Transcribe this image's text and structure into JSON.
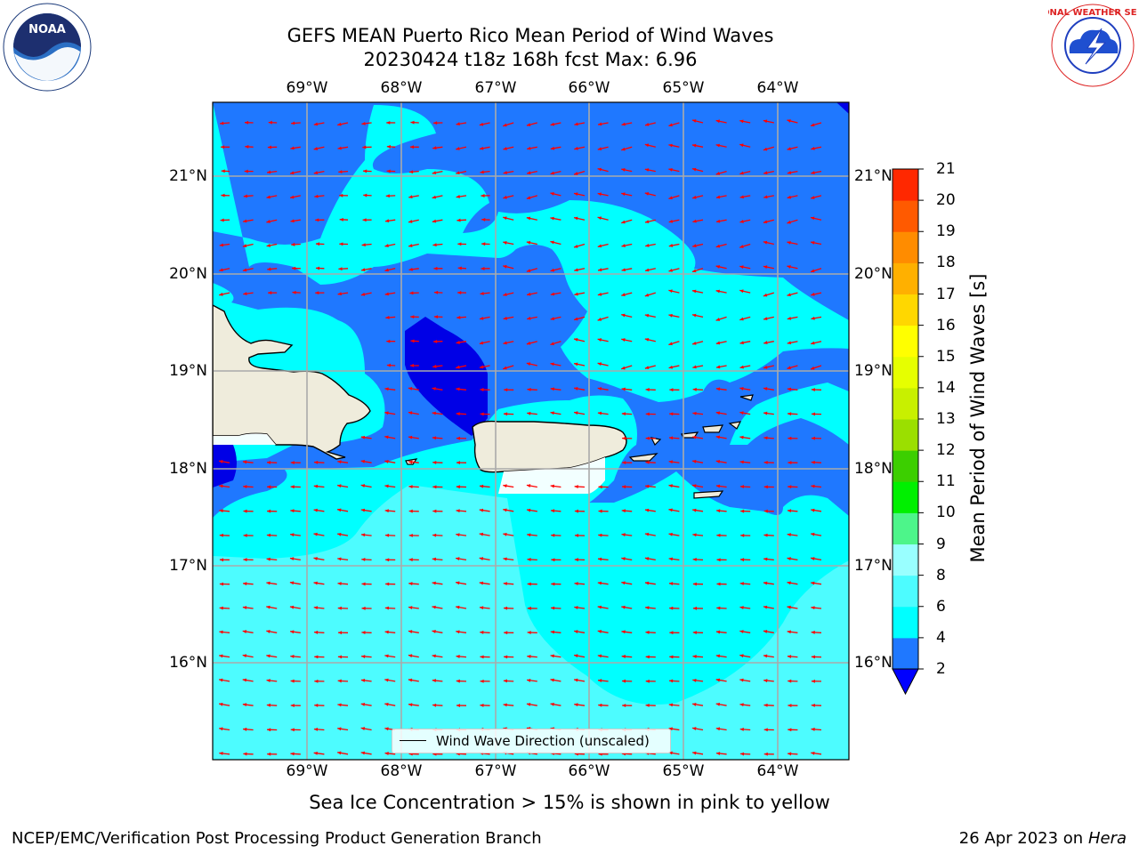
{
  "title": {
    "line1": "GEFS MEAN Puerto Rico Mean Period of Wind Waves",
    "line2": "20230424 t18z 168h fcst   Max: 6.96"
  },
  "logos": {
    "left": {
      "name": "noaa-logo",
      "text": "NOAA"
    },
    "right": {
      "name": "national-weather-service-logo",
      "text": "NATIONAL WEATHER SERVICE"
    }
  },
  "map": {
    "lon_labels": [
      "69°W",
      "68°W",
      "67°W",
      "66°W",
      "65°W",
      "64°W"
    ],
    "lat_labels": [
      "21°N",
      "20°N",
      "19°N",
      "18°N",
      "17°N",
      "16°N"
    ],
    "legend_label": "Wind Wave Direction (unscaled)",
    "arrow_color": "#ff0000",
    "land_color": "#efecdc"
  },
  "colorbar": {
    "label": "Mean Period of Wind Waves [s]",
    "ticks": [
      "2",
      "4",
      "6",
      "8",
      "9",
      "10",
      "11",
      "12",
      "13",
      "14",
      "15",
      "16",
      "17",
      "18",
      "19",
      "20",
      "21"
    ],
    "colors": [
      "#1f78ff",
      "#00ffff",
      "#4dfcff",
      "#99ffff",
      "#4df58a",
      "#00f000",
      "#3ccf00",
      "#9bdf00",
      "#c8f000",
      "#e6ff00",
      "#ffff00",
      "#ffd700",
      "#ffb000",
      "#ff8c00",
      "#ff5a00",
      "#ff2800"
    ],
    "under_color": "#0000ff"
  },
  "footnote": "Sea Ice Concentration > 15% is shown in pink to yellow",
  "footer": {
    "left": "NCEP/EMC/Verification Post Processing Product Generation Branch",
    "right_prefix": "26 Apr 2023 on ",
    "right_host": "Hera"
  }
}
